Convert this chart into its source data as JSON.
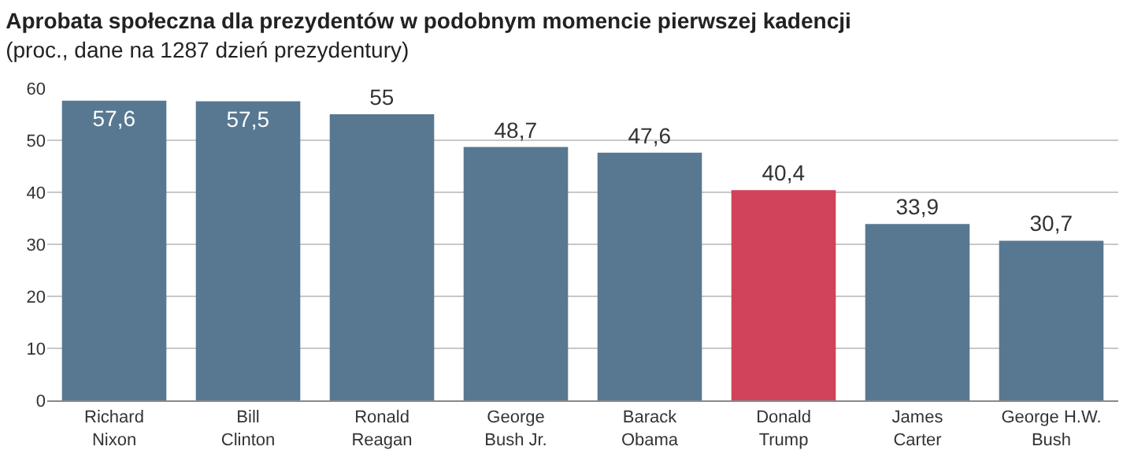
{
  "chart_data": {
    "type": "bar",
    "title": "Aprobata społeczna dla prezydentów w podobnym momencie pierwszej kadencji",
    "subtitle": "(proc., dane na 1287 dzień prezydentury)",
    "categories": [
      "Richard\nNixon",
      "Bill\nClinton",
      "Ronald\nReagan",
      "George\nBush Jr.",
      "Barack\nObama",
      "Donald\nTrump",
      "James\nCarter",
      "George H.W.\nBush"
    ],
    "values": [
      57.6,
      57.5,
      55,
      48.7,
      47.6,
      40.4,
      33.9,
      30.7
    ],
    "value_labels": [
      "57,6",
      "57,5",
      "55",
      "48,7",
      "47,6",
      "40,4",
      "33,9",
      "30,7"
    ],
    "colors": [
      "#587891",
      "#587891",
      "#587891",
      "#587891",
      "#587891",
      "#d0435a",
      "#587891",
      "#587891"
    ],
    "ylim": [
      0,
      60
    ],
    "yticks": [
      0,
      10,
      20,
      30,
      40,
      50,
      60
    ],
    "grid": "y"
  }
}
